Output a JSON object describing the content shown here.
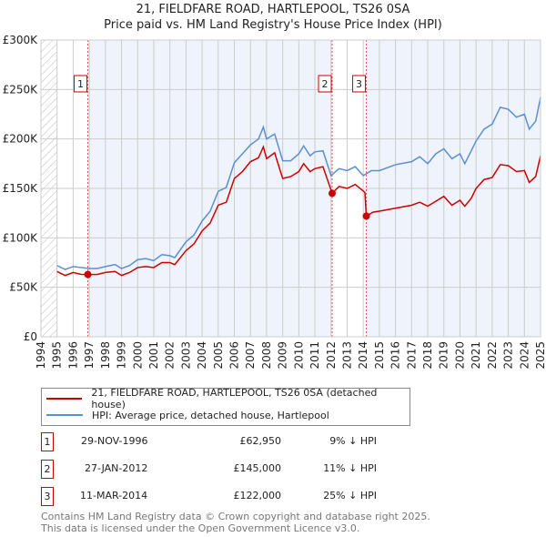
{
  "chart_data": {
    "type": "line",
    "title": "21, FIELDFARE ROAD, HARTLEPOOL, TS26 0SA",
    "subtitle": "Price paid vs. HM Land Registry's House Price Index (HPI)",
    "xlim": [
      1994,
      2025
    ],
    "ylim": [
      0,
      300000
    ],
    "yticks": [
      {
        "v": 0,
        "label": "£0"
      },
      {
        "v": 50000,
        "label": "£50K"
      },
      {
        "v": 100000,
        "label": "£100K"
      },
      {
        "v": 150000,
        "label": "£150K"
      },
      {
        "v": 200000,
        "label": "£200K"
      },
      {
        "v": 250000,
        "label": "£250K"
      },
      {
        "v": 300000,
        "label": "£300K"
      }
    ],
    "xticks": [
      "1994",
      "1995",
      "1996",
      "1997",
      "1998",
      "1999",
      "2000",
      "2001",
      "2002",
      "2003",
      "2004",
      "2005",
      "2006",
      "2007",
      "2008",
      "2009",
      "2010",
      "2011",
      "2012",
      "2013",
      "2014",
      "2015",
      "2016",
      "2017",
      "2018",
      "2019",
      "2020",
      "2021",
      "2022",
      "2023",
      "2024",
      "2025"
    ],
    "grid": true,
    "series": [
      {
        "name": "21, FIELDFARE ROAD, HARTLEPOOL, TS26 0SA (detached house)",
        "color": "#cc0000",
        "x": [
          1995,
          1995.5,
          1996,
          1996.5,
          1996.91,
          1997.5,
          1998,
          1998.6,
          1999,
          1999.5,
          2000,
          2000.5,
          2001,
          2001.5,
          2002,
          2002.3,
          2003,
          2003.5,
          2004,
          2004.5,
          2005,
          2005.5,
          2006,
          2006.5,
          2007,
          2007.5,
          2007.8,
          2008,
          2008.5,
          2009,
          2009.5,
          2010,
          2010.3,
          2010.7,
          2011,
          2011.5,
          2012.07,
          2012.5,
          2013,
          2013.5,
          2014.1,
          2014.19,
          2014.6,
          2015,
          2016,
          2017,
          2017.5,
          2018,
          2018.5,
          2019,
          2019.5,
          2020,
          2020.3,
          2020.7,
          2021,
          2021.5,
          2022,
          2022.5,
          2023,
          2023.5,
          2024,
          2024.3,
          2024.7,
          2025
        ],
        "y": [
          66000,
          62000,
          65000,
          63000,
          62950,
          63000,
          65000,
          66000,
          62000,
          65000,
          70000,
          71000,
          70000,
          75000,
          75000,
          73000,
          87000,
          94000,
          107000,
          115000,
          133000,
          136000,
          160000,
          167000,
          177000,
          181000,
          192000,
          180000,
          186000,
          160000,
          162000,
          167000,
          175000,
          167000,
          170000,
          172000,
          145000,
          152000,
          150000,
          154000,
          146000,
          122000,
          126000,
          127000,
          130000,
          133000,
          136000,
          132000,
          137000,
          142000,
          133000,
          138000,
          132000,
          140000,
          150000,
          159000,
          161000,
          174000,
          173000,
          167000,
          168000,
          156000,
          162000,
          183000
        ]
      },
      {
        "name": "HPI: Average price, detached house, Hartlepool",
        "color": "#5b8fd1",
        "x": [
          1995,
          1995.5,
          1996,
          1996.5,
          1997,
          1997.5,
          1998,
          1998.6,
          1999,
          1999.5,
          2000,
          2000.5,
          2001,
          2001.5,
          2002,
          2002.3,
          2003,
          2003.5,
          2004,
          2004.5,
          2005,
          2005.5,
          2006,
          2006.5,
          2007,
          2007.5,
          2007.8,
          2008,
          2008.5,
          2009,
          2009.5,
          2010,
          2010.3,
          2010.7,
          2011,
          2011.5,
          2012,
          2012.5,
          2013,
          2013.5,
          2014,
          2014.5,
          2015,
          2016,
          2017,
          2017.5,
          2018,
          2018.5,
          2019,
          2019.5,
          2020,
          2020.3,
          2020.7,
          2021,
          2021.5,
          2022,
          2022.5,
          2023,
          2023.5,
          2024,
          2024.3,
          2024.7,
          2025
        ],
        "y": [
          72000,
          68000,
          71000,
          70000,
          69000,
          69000,
          71000,
          73000,
          69000,
          72000,
          78000,
          79000,
          77000,
          83000,
          82000,
          80000,
          96000,
          103000,
          117000,
          127000,
          147000,
          151000,
          176000,
          185000,
          194000,
          200000,
          212000,
          200000,
          205000,
          178000,
          178000,
          185000,
          193000,
          183000,
          187000,
          188000,
          163000,
          170000,
          168000,
          172000,
          163000,
          168000,
          168000,
          174000,
          177000,
          182000,
          175000,
          185000,
          190000,
          180000,
          185000,
          175000,
          188000,
          198000,
          210000,
          215000,
          232000,
          230000,
          222000,
          225000,
          210000,
          218000,
          242000
        ]
      }
    ],
    "sales": [
      {
        "n": "1",
        "x": 1996.91,
        "y": 62950
      },
      {
        "n": "2",
        "x": 2012.07,
        "y": 145000
      },
      {
        "n": "3",
        "x": 2014.19,
        "y": 122000
      }
    ],
    "legend_placement": "below"
  },
  "table": [
    {
      "n": "1",
      "date": "29-NOV-1996",
      "price": "£62,950",
      "hpi": "9% ↓ HPI"
    },
    {
      "n": "2",
      "date": "27-JAN-2012",
      "price": "£145,000",
      "hpi": "11% ↓ HPI"
    },
    {
      "n": "3",
      "date": "11-MAR-2014",
      "price": "£122,000",
      "hpi": "25% ↓ HPI"
    }
  ],
  "footer": {
    "line1": "Contains HM Land Registry data © Crown copyright and database right 2025.",
    "line2": "This data is licensed under the Open Government Licence v3.0."
  }
}
